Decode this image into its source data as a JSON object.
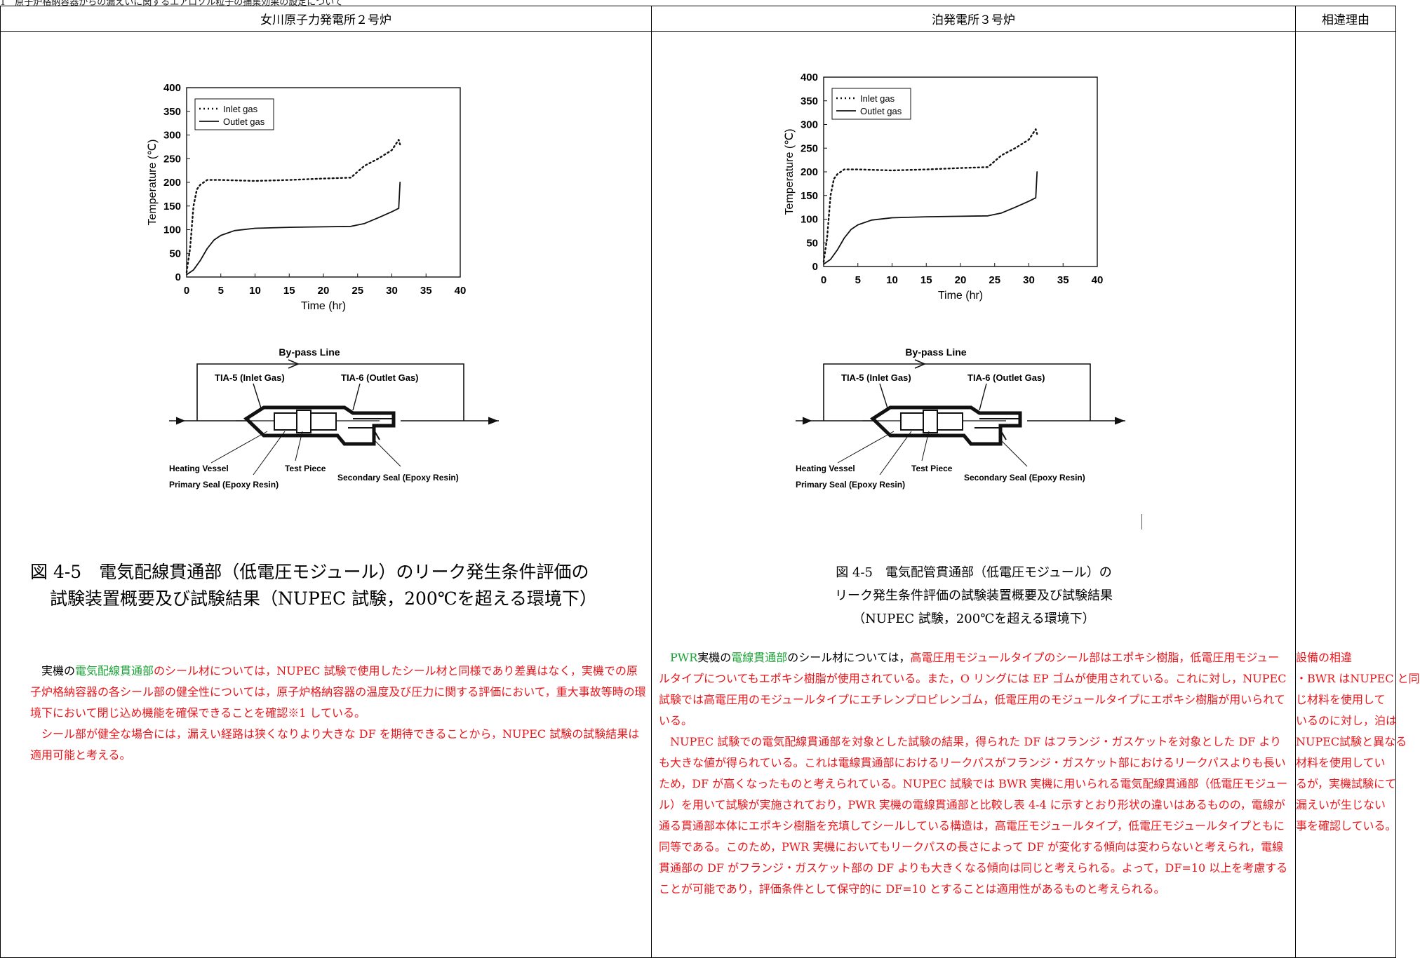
{
  "top_line": "1　原子炉格納容器からの漏えいに関するエアロゾル粒子の捕集効果の設定について",
  "columns": {
    "left_header": "女川原子力発電所２号炉",
    "middle_header": "泊発電所３号炉",
    "right_header": "相違理由"
  },
  "chart_data": [
    {
      "type": "line",
      "title": "",
      "xlabel": "Time (hr)",
      "ylabel": "Temperature (℃)",
      "xlim": [
        0,
        40
      ],
      "ylim": [
        0,
        400
      ],
      "xticks": [
        0,
        5,
        10,
        15,
        20,
        25,
        30,
        35,
        40
      ],
      "yticks": [
        0,
        50,
        100,
        150,
        200,
        250,
        300,
        350,
        400
      ],
      "legend": "top-left",
      "grid": false,
      "series": [
        {
          "name": "Inlet gas",
          "style": "dotted",
          "points": [
            [
              0,
              10
            ],
            [
              0.5,
              60
            ],
            [
              1,
              150
            ],
            [
              1.5,
              185
            ],
            [
              2,
              195
            ],
            [
              3,
              205
            ],
            [
              5,
              205
            ],
            [
              10,
              203
            ],
            [
              15,
              205
            ],
            [
              20,
              208
            ],
            [
              24,
              210
            ],
            [
              26,
              235
            ],
            [
              28,
              250
            ],
            [
              30,
              268
            ],
            [
              31,
              290
            ],
            [
              31.2,
              280
            ]
          ]
        },
        {
          "name": "Outlet gas",
          "style": "solid",
          "points": [
            [
              0,
              5
            ],
            [
              1,
              15
            ],
            [
              2,
              35
            ],
            [
              3,
              60
            ],
            [
              4,
              78
            ],
            [
              5,
              88
            ],
            [
              7,
              98
            ],
            [
              10,
              103
            ],
            [
              15,
              105
            ],
            [
              20,
              106
            ],
            [
              24,
              107
            ],
            [
              26,
              113
            ],
            [
              28,
              125
            ],
            [
              30,
              138
            ],
            [
              31,
              145
            ],
            [
              31.2,
              200
            ]
          ]
        }
      ]
    },
    {
      "type": "line",
      "title": "",
      "xlabel": "Time (hr)",
      "ylabel": "Temperature (℃)",
      "xlim": [
        0,
        40
      ],
      "ylim": [
        0,
        400
      ],
      "xticks": [
        0,
        5,
        10,
        15,
        20,
        25,
        30,
        35,
        40
      ],
      "yticks": [
        0,
        50,
        100,
        150,
        200,
        250,
        300,
        350,
        400
      ],
      "legend": "top-left",
      "grid": false,
      "series": [
        {
          "name": "Inlet gas",
          "style": "dotted",
          "points": [
            [
              0,
              10
            ],
            [
              0.5,
              60
            ],
            [
              1,
              150
            ],
            [
              1.5,
              185
            ],
            [
              2,
              195
            ],
            [
              3,
              205
            ],
            [
              5,
              205
            ],
            [
              10,
              203
            ],
            [
              15,
              205
            ],
            [
              20,
              208
            ],
            [
              24,
              210
            ],
            [
              26,
              235
            ],
            [
              28,
              250
            ],
            [
              30,
              268
            ],
            [
              31,
              290
            ],
            [
              31.2,
              280
            ]
          ]
        },
        {
          "name": "Outlet gas",
          "style": "solid",
          "points": [
            [
              0,
              5
            ],
            [
              1,
              15
            ],
            [
              2,
              35
            ],
            [
              3,
              60
            ],
            [
              4,
              78
            ],
            [
              5,
              88
            ],
            [
              7,
              98
            ],
            [
              10,
              103
            ],
            [
              15,
              105
            ],
            [
              20,
              106
            ],
            [
              24,
              107
            ],
            [
              26,
              113
            ],
            [
              28,
              125
            ],
            [
              30,
              138
            ],
            [
              31,
              145
            ],
            [
              31.2,
              200
            ]
          ]
        }
      ]
    }
  ],
  "diagram": {
    "bypass": "By-pass Line",
    "tia5": "TIA-5 (Inlet Gas)",
    "tia6": "TIA-6 (Outlet Gas)",
    "heating_vessel": "Heating Vessel",
    "test_piece": "Test Piece",
    "primary_seal": "Primary Seal (Epoxy Resin)",
    "secondary_seal": "Secondary Seal (Epoxy Resin)"
  },
  "left": {
    "caption_line1": "図 4-5　電気配線貫通部（低電圧モジュール）のリーク発生条件評価の",
    "caption_line2": "試験装置概要及び試験結果（NUPEC 試験，200℃を超える環境下）",
    "p1_a": "実機の",
    "p1_b": "電気配線貫通部",
    "p1_c": "のシール材については，NUPEC 試験で使用したシール材と同様であり差異はなく，実機での原子炉格納容器の各シール部の健全性については，原子炉格納容器の温度及び圧力に関する評価において，重大事故等時の環境下において閉じ込め機能を確保できることを確認※1 している。",
    "p2": "シール部が健全な場合には，漏えい経路は狭くなりより大きな DF を期待できることから，NUPEC 試験の試験結果は適用可能と考える。"
  },
  "middle": {
    "caption_line1": "図 4-5　電気配管貫通部（低電圧モジュール）の",
    "caption_line2": "リーク発生条件評価の試験装置概要及び試験結果",
    "caption_line3": "（NUPEC 試験，200℃を超える環境下）",
    "p1_a": "PWR",
    "p1_b": "実機の",
    "p1_c": "電線貫通部",
    "p1_d": "のシール材については，",
    "p1_e": "高電圧用モジュールタイプのシール部はエポキシ樹脂，低電圧用モジュールタイプについてもエポキシ樹脂が使用されている。また，O リングには EP ゴムが使用されている。これに対し，NUPEC 試験では高電圧用のモジュールタイプにエチレンプロピレンゴム，低電圧用のモジュールタイプにエポキシ樹脂が用いられている。",
    "p2": "NUPEC 試験での電気配線貫通部を対象とした試験の結果，得られた DF はフランジ・ガスケットを対象とした DF よりも大きな値が得られている。これは電線貫通部におけるリークパスがフランジ・ガスケット部におけるリークパスよりも長いため，DF が高くなったものと考えられている。NUPEC 試験では BWR 実機に用いられる電気配線貫通部（低電圧モジュール）を用いて試験が実施されており，PWR 実機の電線貫通部と比較し表 4-4 に示すとおり形状の違いはあるものの，電線が通る貫通部本体にエポキシ樹脂を充填してシールしている構造は，高電圧モジュールタイプ，低電圧モジュールタイプともに同等である。このため，PWR 実機においてもリークパスの長さによって DF が変化する傾向は変わらないと考えられ，電線貫通部の DF がフランジ・ガスケット部の DF よりも大きくなる傾向は同じと考えられる。よって，DF=10 以上を考慮することが可能であり，評価条件として保守的に DF=10 とすることは適用性があるものと考えられる。"
  },
  "reason": {
    "lines": [
      "設備の相違",
      "・BWR はNUPEC と同",
      "じ材料を使用して",
      "いるのに対し，泊は",
      "NUPEC試験と異なる",
      "材料を使用してい",
      "るが，実機試験にて",
      "漏えいが生じない",
      "事を確認している。"
    ]
  }
}
